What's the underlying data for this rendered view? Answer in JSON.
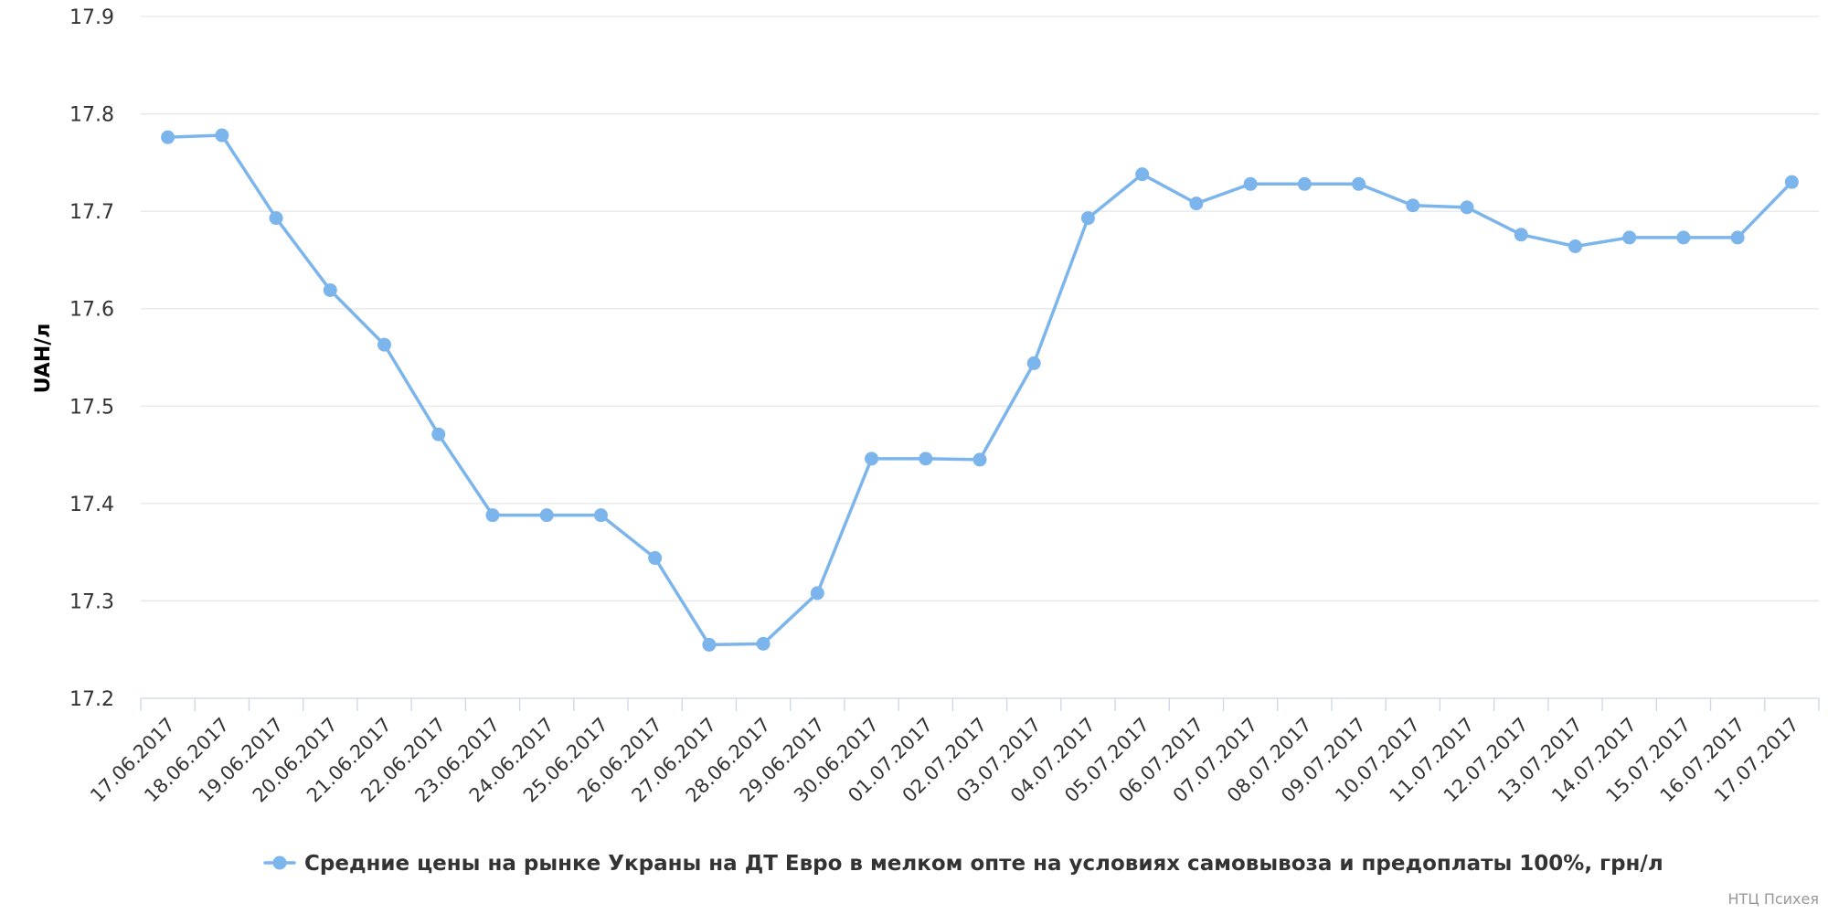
{
  "chart_data": {
    "type": "line",
    "title": "",
    "ylabel": "UAH/л",
    "xlabel": "",
    "ylim": [
      17.2,
      17.9
    ],
    "yticks": [
      "17.2",
      "17.3",
      "17.4",
      "17.5",
      "17.6",
      "17.7",
      "17.8",
      "17.9"
    ],
    "grid": true,
    "legend_position": "bottom-center",
    "categories": [
      "17.06.2017",
      "18.06.2017",
      "19.06.2017",
      "20.06.2017",
      "21.06.2017",
      "22.06.2017",
      "23.06.2017",
      "24.06.2017",
      "25.06.2017",
      "26.06.2017",
      "27.06.2017",
      "28.06.2017",
      "29.06.2017",
      "30.06.2017",
      "01.07.2017",
      "02.07.2017",
      "03.07.2017",
      "04.07.2017",
      "05.07.2017",
      "06.07.2017",
      "07.07.2017",
      "08.07.2017",
      "09.07.2017",
      "10.07.2017",
      "11.07.2017",
      "12.07.2017",
      "13.07.2017",
      "14.07.2017",
      "15.07.2017",
      "16.07.2017",
      "17.07.2017"
    ],
    "series": [
      {
        "name": "Средние цены на рынке Украны на ДТ Евро в мелком опте на условиях самовывоза и предоплаты 100%, грн/л",
        "color": "#7cb5ec",
        "values": [
          17.776,
          17.778,
          17.693,
          17.619,
          17.563,
          17.471,
          17.388,
          17.388,
          17.388,
          17.344,
          17.255,
          17.256,
          17.308,
          17.446,
          17.446,
          17.445,
          17.544,
          17.693,
          17.738,
          17.708,
          17.728,
          17.728,
          17.728,
          17.706,
          17.704,
          17.676,
          17.664,
          17.673,
          17.673,
          17.673,
          17.73
        ]
      }
    ],
    "credits": "НТЦ Психея"
  }
}
